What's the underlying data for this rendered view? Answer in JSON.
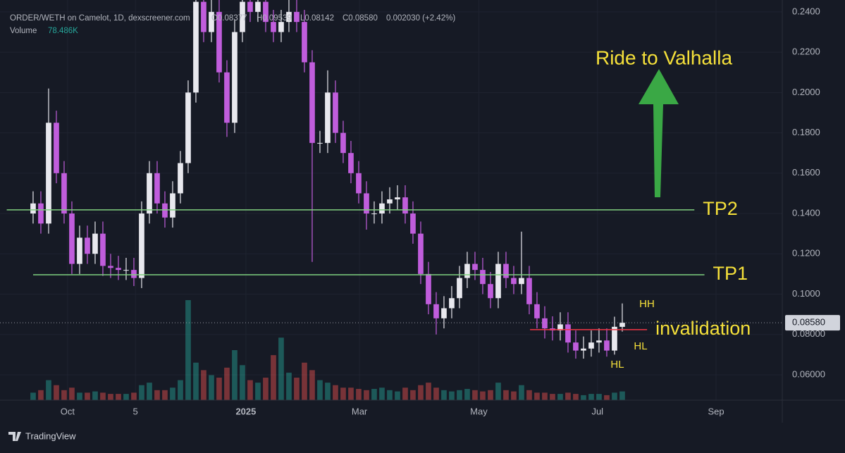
{
  "header": {
    "symbol": "ORDER/WETH on Camelot, 1D, dexscreener.com",
    "ohlc": [
      "O0.08377",
      "H0.09539",
      "L0.08142",
      "C0.08580"
    ],
    "change": "0.002030 (+2.42%)",
    "volume_label": "Volume",
    "volume_value": "78.486K"
  },
  "footer": {
    "brand": "TradingView"
  },
  "chart_data": {
    "type": "candlestick",
    "up_color": "#e8e8ee",
    "down_color": "#c05ddc",
    "volume_up_color": "#26a69a",
    "volume_down_color": "#ef5350",
    "open": [
      0.14,
      0.145,
      0.135,
      0.185,
      0.16,
      0.14,
      0.115,
      0.128,
      0.12,
      0.13,
      0.114,
      0.113,
      0.112,
      0.112,
      0.108,
      0.14,
      0.16,
      0.145,
      0.138,
      0.15,
      0.165,
      0.2,
      0.245,
      0.23,
      0.24,
      0.21,
      0.185,
      0.23,
      0.245,
      0.24,
      0.245,
      0.235,
      0.23,
      0.235,
      0.24,
      0.235,
      0.215,
      0.175,
      0.175,
      0.2,
      0.18,
      0.17,
      0.16,
      0.15,
      0.14,
      0.14,
      0.145,
      0.147,
      0.148,
      0.14,
      0.13,
      0.11,
      0.095,
      0.088,
      0.093,
      0.098,
      0.108,
      0.115,
      0.112,
      0.105,
      0.098,
      0.115,
      0.108,
      0.105,
      0.108,
      0.095,
      0.088,
      0.083,
      0.082,
      0.085,
      0.076,
      0.072,
      0.073,
      0.076,
      0.077,
      0.072,
      0.08377
    ],
    "high": [
      0.151,
      0.151,
      0.202,
      0.191,
      0.166,
      0.146,
      0.134,
      0.134,
      0.136,
      0.136,
      0.12,
      0.119,
      0.118,
      0.118,
      0.146,
      0.166,
      0.166,
      0.151,
      0.156,
      0.171,
      0.206,
      0.251,
      0.251,
      0.246,
      0.246,
      0.216,
      0.236,
      0.251,
      0.251,
      0.251,
      0.251,
      0.241,
      0.241,
      0.246,
      0.246,
      0.241,
      0.221,
      0.181,
      0.211,
      0.206,
      0.186,
      0.176,
      0.166,
      0.156,
      0.146,
      0.151,
      0.153,
      0.154,
      0.154,
      0.146,
      0.136,
      0.116,
      0.101,
      0.099,
      0.104,
      0.114,
      0.121,
      0.121,
      0.118,
      0.111,
      0.121,
      0.121,
      0.114,
      0.131,
      0.114,
      0.101,
      0.094,
      0.089,
      0.091,
      0.091,
      0.082,
      0.079,
      0.082,
      0.083,
      0.083,
      0.0888,
      0.09539
    ],
    "low": [
      0.135,
      0.13,
      0.13,
      0.155,
      0.135,
      0.11,
      0.11,
      0.115,
      0.115,
      0.109,
      0.108,
      0.107,
      0.107,
      0.104,
      0.103,
      0.135,
      0.14,
      0.133,
      0.133,
      0.145,
      0.16,
      0.195,
      0.225,
      0.225,
      0.205,
      0.178,
      0.18,
      0.225,
      0.235,
      0.235,
      0.23,
      0.225,
      0.225,
      0.23,
      0.23,
      0.21,
      0.116,
      0.17,
      0.17,
      0.175,
      0.165,
      0.155,
      0.145,
      0.132,
      0.135,
      0.135,
      0.14,
      0.142,
      0.135,
      0.125,
      0.105,
      0.09,
      0.08,
      0.083,
      0.088,
      0.093,
      0.103,
      0.107,
      0.1,
      0.093,
      0.093,
      0.103,
      0.1,
      0.1,
      0.09,
      0.083,
      0.078,
      0.077,
      0.077,
      0.071,
      0.068,
      0.068,
      0.069,
      0.071,
      0.069,
      0.07,
      0.08142
    ],
    "close": [
      0.145,
      0.135,
      0.185,
      0.16,
      0.14,
      0.115,
      0.128,
      0.12,
      0.13,
      0.114,
      0.113,
      0.112,
      0.112,
      0.108,
      0.14,
      0.16,
      0.145,
      0.138,
      0.15,
      0.165,
      0.2,
      0.245,
      0.23,
      0.24,
      0.21,
      0.185,
      0.23,
      0.245,
      0.24,
      0.245,
      0.235,
      0.23,
      0.235,
      0.24,
      0.235,
      0.215,
      0.175,
      0.175,
      0.2,
      0.18,
      0.17,
      0.16,
      0.15,
      0.14,
      0.14,
      0.145,
      0.147,
      0.148,
      0.14,
      0.13,
      0.11,
      0.095,
      0.088,
      0.093,
      0.098,
      0.108,
      0.115,
      0.112,
      0.105,
      0.098,
      0.115,
      0.108,
      0.105,
      0.108,
      0.095,
      0.088,
      0.083,
      0.082,
      0.085,
      0.076,
      0.072,
      0.073,
      0.076,
      0.077,
      0.072,
      0.0838,
      0.0858
    ],
    "volume": [
      30,
      40,
      80,
      60,
      40,
      50,
      30,
      30,
      35,
      30,
      25,
      25,
      25,
      30,
      60,
      70,
      40,
      40,
      50,
      80,
      400,
      150,
      120,
      100,
      90,
      130,
      200,
      140,
      80,
      70,
      90,
      180,
      250,
      110,
      90,
      150,
      120,
      80,
      70,
      60,
      50,
      50,
      45,
      40,
      45,
      50,
      40,
      35,
      50,
      40,
      60,
      70,
      50,
      40,
      35,
      40,
      45,
      40,
      35,
      40,
      70,
      40,
      35,
      60,
      40,
      30,
      30,
      25,
      25,
      30,
      25,
      20,
      25,
      25,
      20,
      30,
      35
    ],
    "vlim": [
      0,
      1600
    ],
    "xlim": [
      -4.27,
      96.64
    ],
    "xticks": [
      {
        "value": 4.45,
        "label": "Oct"
      },
      {
        "value": 13.2,
        "label": "5"
      },
      {
        "value": 27.45,
        "label": "2025"
      },
      {
        "value": 42.1,
        "label": "Mar"
      },
      {
        "value": 57.5,
        "label": "May"
      },
      {
        "value": 72.8,
        "label": "Jul"
      },
      {
        "value": 88.1,
        "label": "Sep"
      }
    ],
    "ylim": [
      0.0474,
      0.2459
    ],
    "yticks": [
      {
        "value": 0.06,
        "label": "0.06000"
      },
      {
        "value": 0.08,
        "label": "0.08000"
      },
      {
        "value": 0.1,
        "label": "0.1000"
      },
      {
        "value": 0.12,
        "label": "0.1200"
      },
      {
        "value": 0.14,
        "label": "0.1400"
      },
      {
        "value": 0.16,
        "label": "0.1600"
      },
      {
        "value": 0.18,
        "label": "0.1800"
      },
      {
        "value": 0.2,
        "label": "0.2000"
      },
      {
        "value": 0.22,
        "label": "0.2200"
      },
      {
        "value": 0.24,
        "label": "0.2400"
      }
    ],
    "grid": true,
    "last_price": {
      "value": 0.0858,
      "label": "0.08580"
    },
    "levels": [
      {
        "label": "TP2",
        "value": 0.1418,
        "x": [
          -3.4,
          85.3
        ],
        "color": "#7fcf7f"
      },
      {
        "label": "TP1",
        "value": 0.1096,
        "x": [
          0,
          86.6
        ],
        "color": "#7fcf7f"
      },
      {
        "label": "invalidation",
        "value": 0.0824,
        "x": [
          64.1,
          79.2
        ],
        "color": "#f23645"
      }
    ],
    "notes": [
      "Ride to Valhalla",
      "HH",
      "HL",
      "HL"
    ]
  }
}
